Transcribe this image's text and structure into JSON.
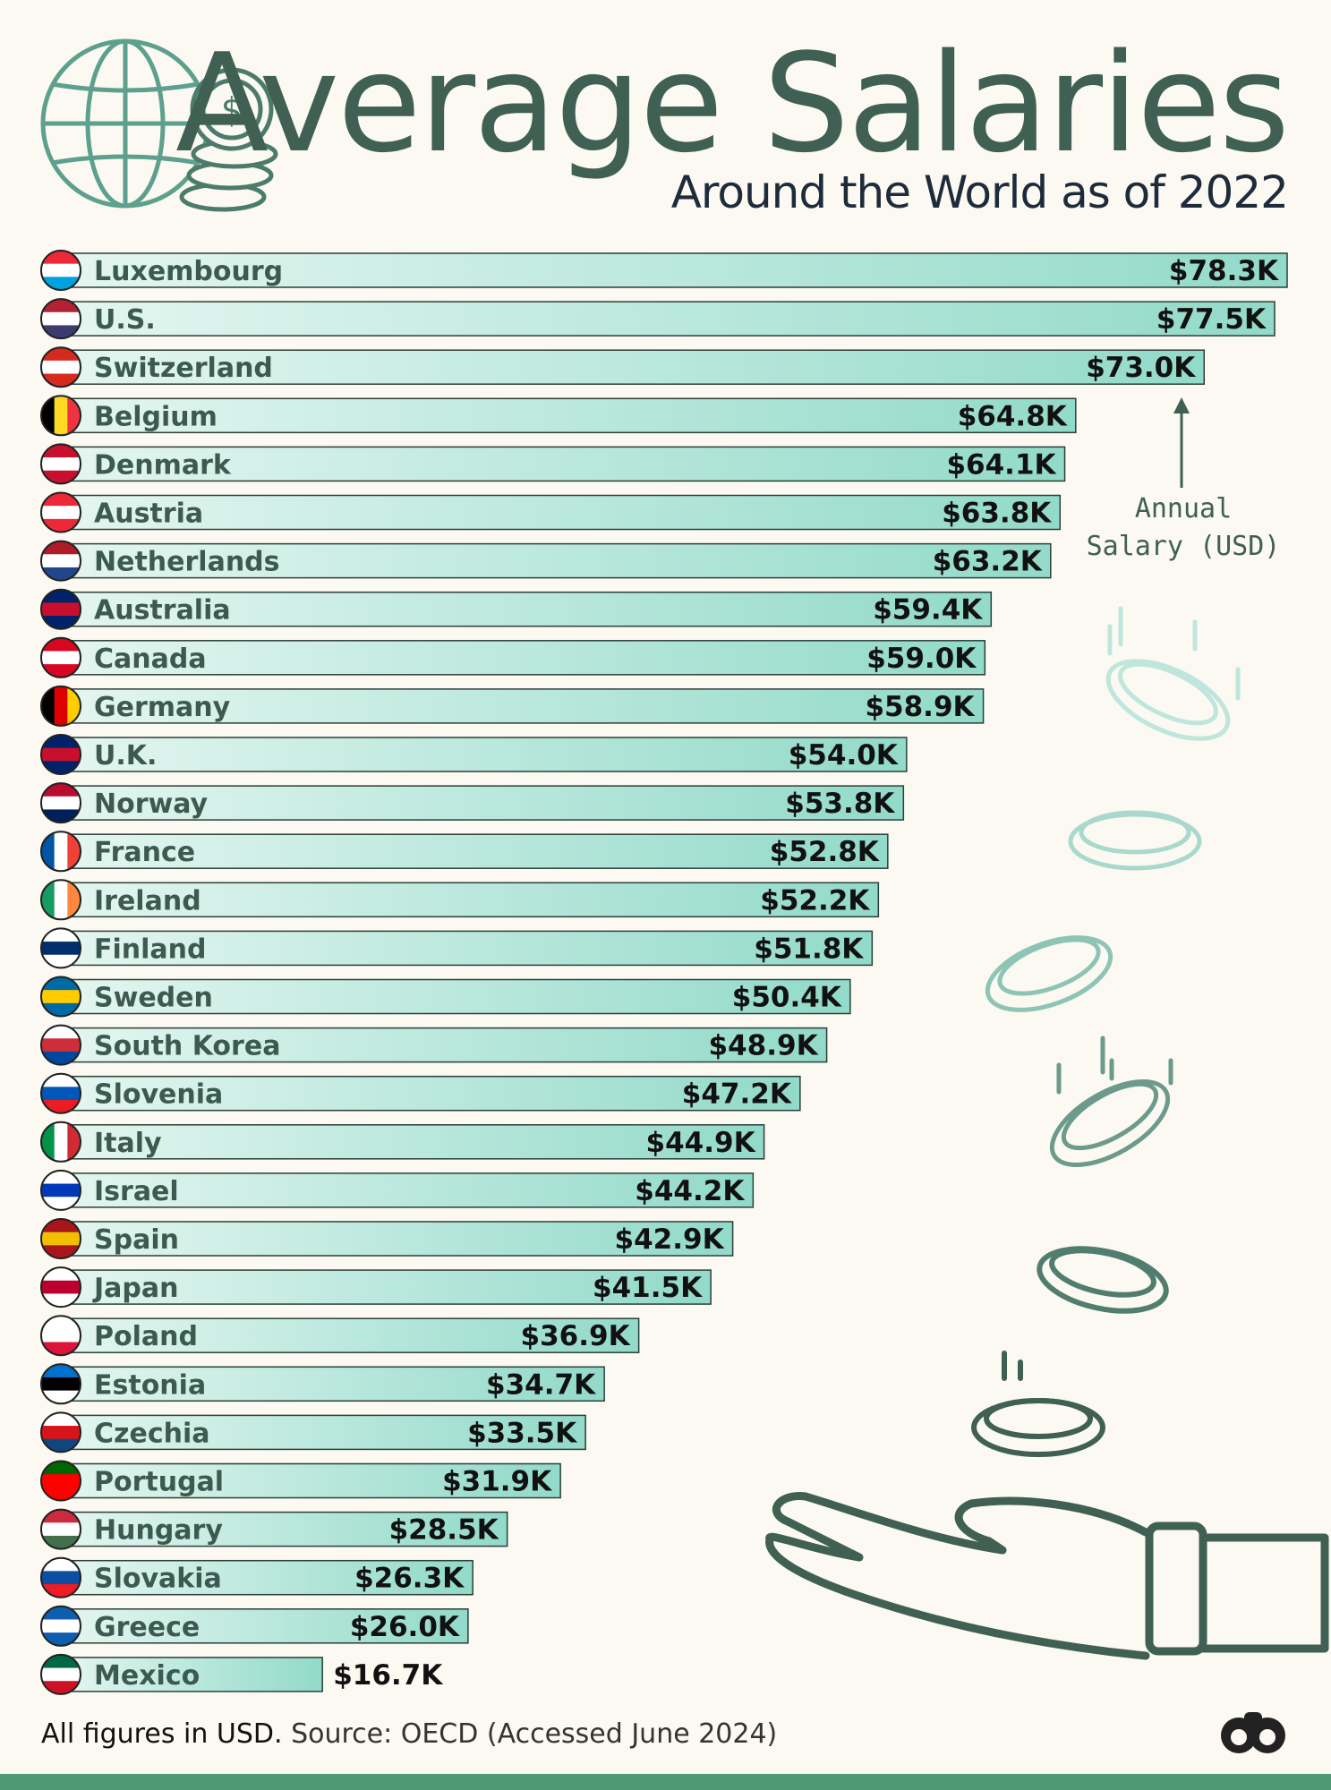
{
  "header": {
    "title": "Average Salaries",
    "subtitle": "Around the World as of 2022"
  },
  "annotation": {
    "line1": "Annual",
    "line2": "Salary (USD)"
  },
  "footer": {
    "bold": "All figures in USD.",
    "source": "Source: OECD (Accessed June 2024)"
  },
  "colors": {
    "bar_light": "#dcf3ec",
    "bar_dark": "#96dbcb",
    "title": "#3f6052",
    "strip": "#4f9a75"
  },
  "chart_data": {
    "type": "bar",
    "orientation": "horizontal",
    "title": "Average Salaries",
    "subtitle": "Around the World as of 2022",
    "categories": [
      "Luxembourg",
      "U.S.",
      "Switzerland",
      "Belgium",
      "Denmark",
      "Austria",
      "Netherlands",
      "Australia",
      "Canada",
      "Germany",
      "U.K.",
      "Norway",
      "France",
      "Ireland",
      "Finland",
      "Sweden",
      "South Korea",
      "Slovenia",
      "Italy",
      "Israel",
      "Spain",
      "Japan",
      "Poland",
      "Estonia",
      "Czechia",
      "Portugal",
      "Hungary",
      "Slovakia",
      "Greece",
      "Mexico"
    ],
    "values": [
      78.3,
      77.5,
      73.0,
      64.8,
      64.1,
      63.8,
      63.2,
      59.4,
      59.0,
      58.9,
      54.0,
      53.8,
      52.8,
      52.2,
      51.8,
      50.4,
      48.9,
      47.2,
      44.9,
      44.2,
      42.9,
      41.5,
      36.9,
      34.7,
      33.5,
      31.9,
      28.5,
      26.3,
      26.0,
      16.7
    ],
    "value_labels": [
      "$78.3K",
      "$77.5K",
      "$73.0K",
      "$64.8K",
      "$64.1K",
      "$63.8K",
      "$63.2K",
      "$59.4K",
      "$59.0K",
      "$58.9K",
      "$54.0K",
      "$53.8K",
      "$52.8K",
      "$52.2K",
      "$51.8K",
      "$50.4K",
      "$48.9K",
      "$47.2K",
      "$44.9K",
      "$44.2K",
      "$42.9K",
      "$41.5K",
      "$36.9K",
      "$34.7K",
      "$33.5K",
      "$31.9K",
      "$28.5K",
      "$26.3K",
      "$26.0K",
      "$16.7K"
    ],
    "xlim": [
      0,
      78.3
    ],
    "unit": "USD",
    "grid": false,
    "legend": "none"
  }
}
